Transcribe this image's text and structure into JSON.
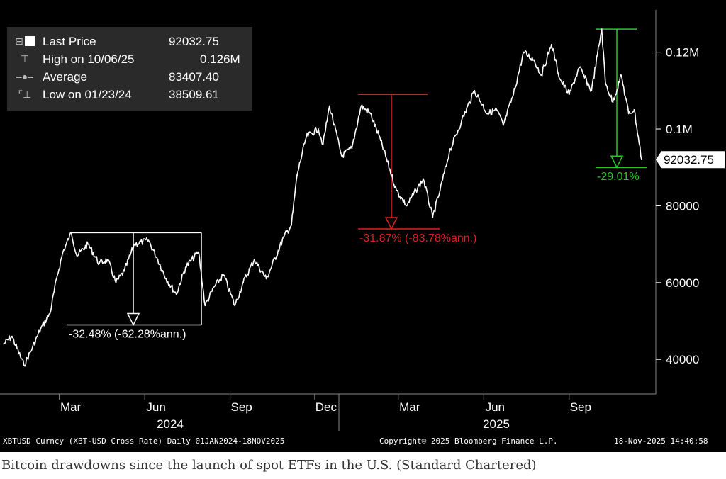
{
  "legend": {
    "items": [
      {
        "label": "Last Price",
        "value": "92032.75",
        "icon": "last-price-box-icon"
      },
      {
        "label": "High on 10/06/25",
        "value": "0.126M",
        "icon": "high-marker-icon"
      },
      {
        "label": "Average",
        "value": "83407.40",
        "icon": "average-marker-icon"
      },
      {
        "label": "Low on 01/23/24",
        "value": "38509.61",
        "icon": "low-marker-icon"
      }
    ]
  },
  "footer": {
    "left": "XBTUSD Curncy (XBT-USD Cross Rate) Daily 01JAN2024-18NOV2025",
    "center": "Copyright© 2025 Bloomberg Finance L.P.",
    "right": "18-Nov-2025 14:40:58"
  },
  "caption": "Bitcoin drawdowns since the launch of spot ETFs in the U.S. (Standard Chartered)",
  "colors": {
    "background": "#000000",
    "price_line": "#ffffff",
    "drawdown_2024": "#ffffff",
    "drawdown_2025_early": "#e02020",
    "drawdown_2025_late": "#22cc22",
    "legend_bg": "#2a2a2a"
  },
  "chart_data": {
    "type": "line",
    "series": [
      {
        "name": "Last Price",
        "x": [
          "2024-01-01",
          "2024-01-10",
          "2024-01-23",
          "2024-02-01",
          "2024-02-10",
          "2024-02-20",
          "2024-02-28",
          "2024-03-05",
          "2024-03-14",
          "2024-03-20",
          "2024-04-01",
          "2024-04-13",
          "2024-04-22",
          "2024-05-01",
          "2024-05-10",
          "2024-05-21",
          "2024-06-05",
          "2024-06-15",
          "2024-06-24",
          "2024-07-05",
          "2024-07-15",
          "2024-07-29",
          "2024-08-05",
          "2024-08-15",
          "2024-08-25",
          "2024-09-06",
          "2024-09-15",
          "2024-09-27",
          "2024-10-10",
          "2024-10-29",
          "2024-11-06",
          "2024-11-12",
          "2024-11-22",
          "2024-12-05",
          "2024-12-10",
          "2024-12-17",
          "2024-12-30",
          "2025-01-10",
          "2025-01-20",
          "2025-01-30",
          "2025-02-10",
          "2025-02-27",
          "2025-03-10",
          "2025-03-20",
          "2025-03-28",
          "2025-04-07",
          "2025-04-15",
          "2025-04-25",
          "2025-05-08",
          "2025-05-22",
          "2025-06-05",
          "2025-06-15",
          "2025-06-22",
          "2025-07-03",
          "2025-07-14",
          "2025-07-25",
          "2025-08-02",
          "2025-08-13",
          "2025-08-22",
          "2025-09-01",
          "2025-09-12",
          "2025-09-25",
          "2025-10-06",
          "2025-10-10",
          "2025-10-18",
          "2025-10-27",
          "2025-11-04",
          "2025-11-10",
          "2025-11-18"
        ],
        "values": [
          44000,
          46000,
          38509.61,
          43000,
          48000,
          52000,
          62000,
          68000,
          73000,
          67000,
          70000,
          65000,
          66000,
          60000,
          63000,
          70000,
          71000,
          66000,
          61000,
          57000,
          64000,
          68000,
          54000,
          59000,
          62000,
          54000,
          60000,
          66000,
          61000,
          72000,
          75000,
          88000,
          98000,
          100000,
          96000,
          106000,
          93000,
          95000,
          106000,
          104000,
          97000,
          84000,
          80000,
          84000,
          87000,
          77000,
          84000,
          94000,
          102000,
          110000,
          104000,
          105000,
          101000,
          109000,
          120000,
          118000,
          114000,
          122000,
          113000,
          109000,
          116000,
          110000,
          126000,
          112000,
          107000,
          114000,
          104000,
          105000,
          92032.75
        ]
      }
    ],
    "x_tick_labels": [
      "Mar",
      "Jun",
      "Sep",
      "Dec",
      "Mar",
      "Jun",
      "Sep"
    ],
    "x_year_labels": [
      "2024",
      "2025"
    ],
    "y_tick_labels": [
      "40000",
      "60000",
      "80000",
      "0.1M",
      "0.12M"
    ],
    "ylim": [
      31000,
      131000
    ],
    "last_price_label": "92032.75",
    "drawdowns": [
      {
        "label": "-32.48% (-62.28%ann.)",
        "start": "2024-03-14",
        "end": "2024-08-05",
        "top": 73000,
        "bottom": 49000,
        "color": "#ffffff"
      },
      {
        "label": "-31.87% (-83.78%ann.)",
        "start": "2024-12-17",
        "end": "2025-04-07",
        "top": 109000,
        "bottom": 74000,
        "color": "#e02020"
      },
      {
        "label": "-29.01%",
        "start": "2025-10-06",
        "end": "2025-11-18",
        "top": 126000,
        "bottom": 90000,
        "color": "#22cc22"
      }
    ],
    "grid": false,
    "legend_position": "top-left"
  }
}
